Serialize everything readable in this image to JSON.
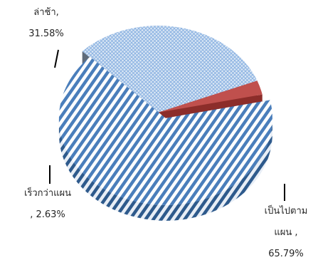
{
  "chart_data": {
    "type": "pie",
    "style": "3d",
    "title": "",
    "slices": [
      {
        "label": "เป็นไปตามแผน",
        "value": 65.79,
        "value_text": "65.79%",
        "pattern": "diagonal-stripes",
        "colors": {
          "primary": "#4A7EBB",
          "secondary": "#FFFFFF",
          "side": "#2E5A8C"
        },
        "exploded": true
      },
      {
        "label": "ล่าช้า",
        "value": 31.58,
        "value_text": "31.58%",
        "pattern": "crosshatch",
        "colors": {
          "primary": "#8DB3E2",
          "secondary": "#FFFFFF",
          "side": "#5F6B7A"
        },
        "exploded": false
      },
      {
        "label": "เร็วกว่าแผน",
        "value": 2.63,
        "value_text": "2.63%",
        "pattern": "solid",
        "colors": {
          "primary": "#C0504D",
          "secondary": "#C0504D",
          "side": "#8C2D2A"
        },
        "exploded": false
      }
    ],
    "legend": "none",
    "labels_outside": true
  },
  "labels": {
    "late": {
      "line1": "ล่าช้า,",
      "line2": "31.58%"
    },
    "early": {
      "line1": "เร็วกว่าแผน",
      "line2": ", 2.63%"
    },
    "ontime": {
      "line1": "เป็นไปตาม",
      "line2": "แผน ,",
      "line3": "65.79%"
    }
  }
}
